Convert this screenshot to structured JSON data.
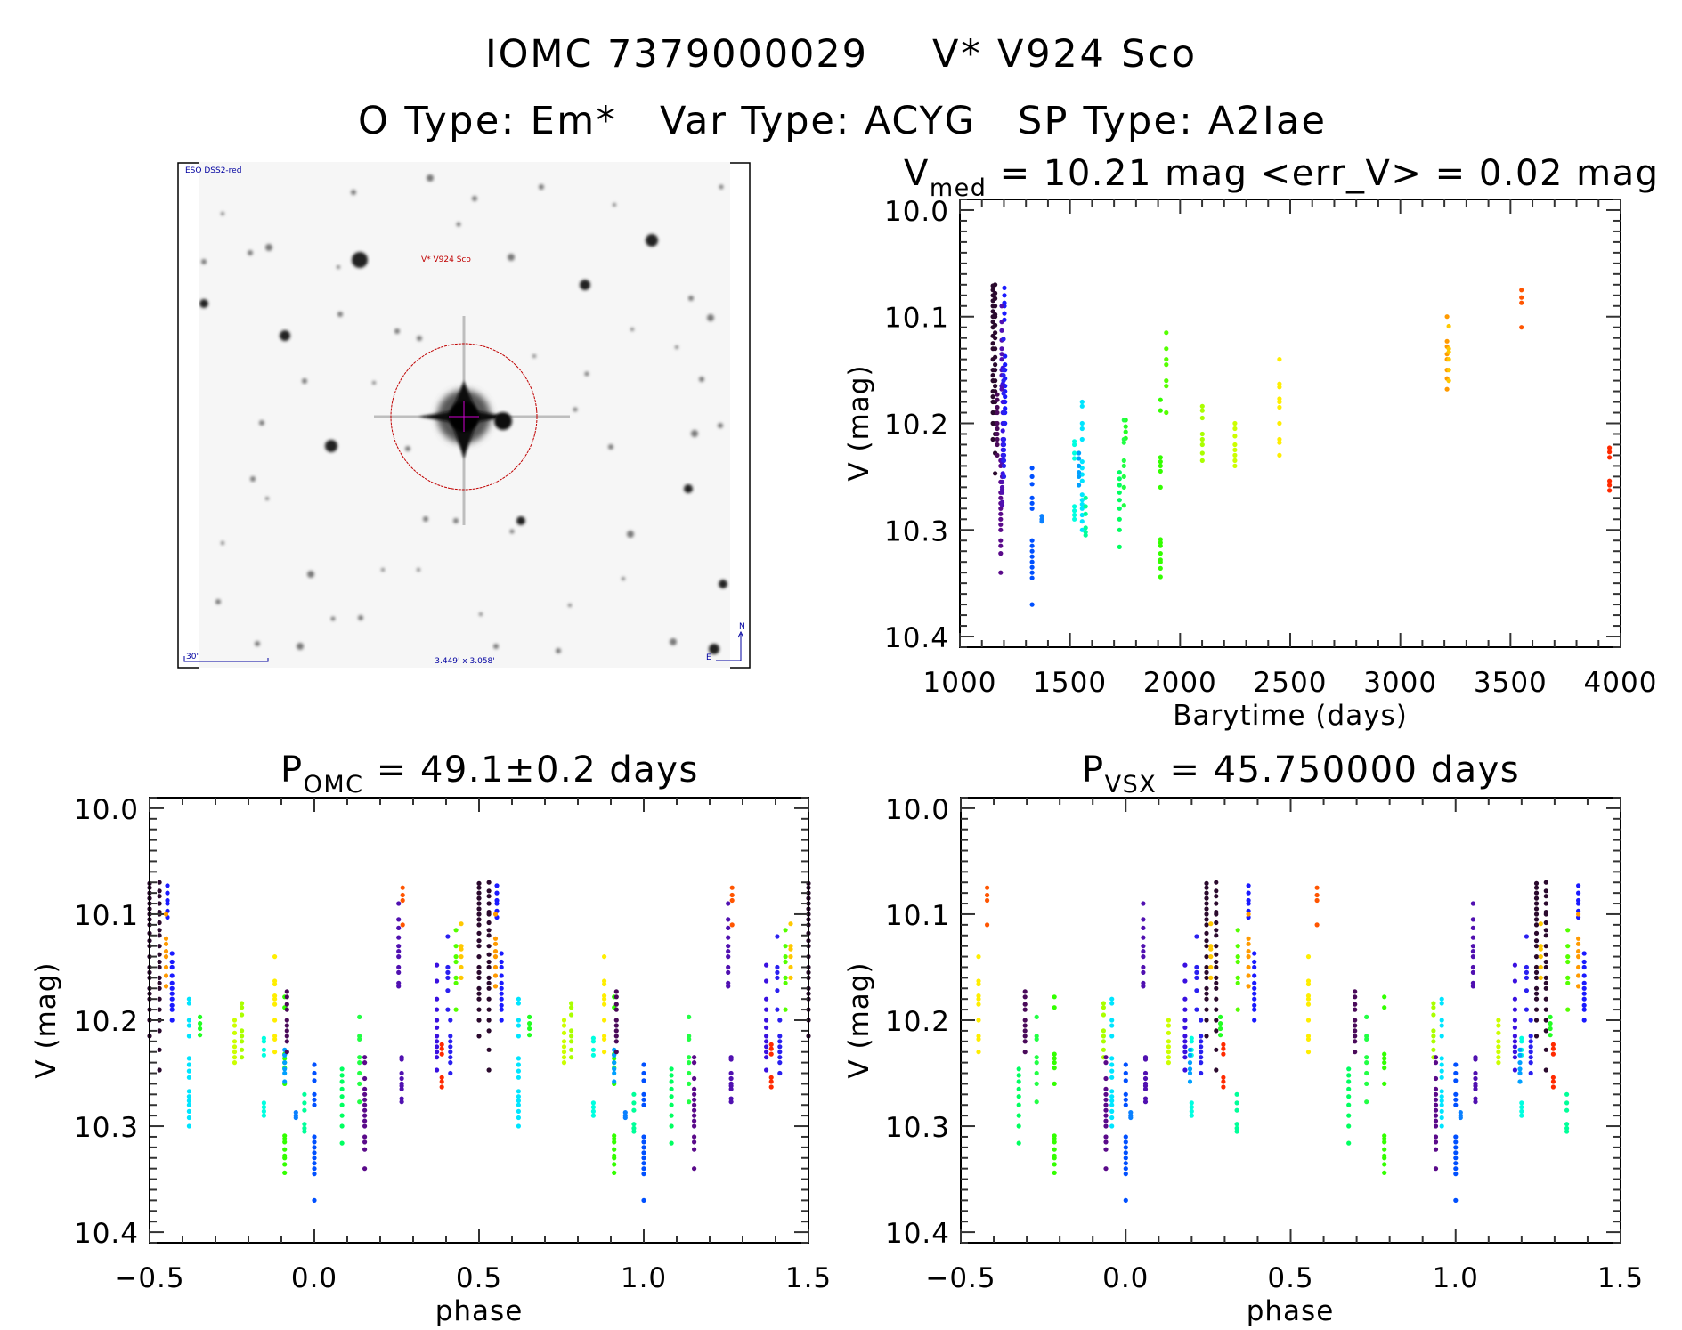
{
  "header": {
    "iomc_id": "IOMC 7379000029",
    "object_name": "V* V924 Sco",
    "object_type": "O Type: Em*",
    "var_type": "Var Type: ACYG",
    "sp_type": "SP Type: A2Iae"
  },
  "image": {
    "survey_label": "ESO DSS2-red",
    "target_label": "V* V924 Sco",
    "scale_label": "30\"",
    "fov_label": "3.449' x 3.058'",
    "compass_north": "N",
    "compass_east": "E",
    "circle_color": "#c00000",
    "label_color": "#0000a0"
  },
  "chart_data": [
    {
      "type": "scatter",
      "title": {
        "prefix": "V",
        "sub": "med",
        "suffix": " = 10.21 mag <err_V> = 0.02 mag"
      },
      "xlabel": "Barytime (days)",
      "ylabel": "V (mag)",
      "xlim": [
        1000,
        4000
      ],
      "ylim": [
        9.99,
        10.41
      ],
      "y_reversed": true,
      "xticks": [
        1000,
        1500,
        2000,
        2500,
        3000,
        3500,
        4000
      ],
      "xtick_labels": [
        "1000",
        "1500",
        "2000",
        "2500",
        "3000",
        "3500",
        "4000"
      ],
      "yticks": [
        10.0,
        10.1,
        10.2,
        10.3,
        10.4
      ],
      "ytick_labels": [
        "10.0",
        "10.1",
        "10.2",
        "10.3",
        "10.4"
      ],
      "grid": false,
      "series": [
        {
          "color": "#2b0a2e",
          "time": 1150,
          "phase_omc": 0.5,
          "phase_vsx": 0.245,
          "mags": [
            10.071,
            10.075,
            10.08,
            10.085,
            10.09,
            10.095,
            10.1,
            10.105,
            10.11,
            10.118,
            10.125,
            10.13,
            10.14,
            10.15,
            10.155,
            10.16,
            10.17,
            10.175,
            10.18,
            10.19,
            10.2,
            10.215
          ]
        },
        {
          "color": "#2b0a2e",
          "time": 1160,
          "phase_omc": 0.53,
          "phase_vsx": 0.274,
          "mags": [
            10.07,
            10.078,
            10.083,
            10.09,
            10.098,
            10.1,
            10.108,
            10.115,
            10.12,
            10.13,
            10.138,
            10.145,
            10.15,
            10.16,
            10.165,
            10.17,
            10.18,
            10.19,
            10.2,
            10.21,
            10.228,
            10.247
          ]
        },
        {
          "color": "#1a1aff",
          "time": 1202,
          "phase_omc": 0.554,
          "phase_vsx": 0.372,
          "mags": [
            10.073,
            10.08,
            10.087,
            10.09,
            10.097,
            10.103
          ]
        },
        {
          "color": "#1a1aff",
          "time": 1205,
          "phase_omc": 0.568,
          "phase_vsx": 0.39,
          "mags": [
            10.137,
            10.145,
            10.15,
            10.158,
            10.165,
            10.17,
            10.175,
            10.18,
            10.186,
            10.19,
            10.2
          ]
        },
        {
          "color": "#ff9a00",
          "time": 3212,
          "phase_omc": 0.55,
          "phase_vsx": 0.372,
          "mags": [
            10.1,
            10.123,
            10.128,
            10.135,
            10.14,
            10.15,
            10.158,
            10.168
          ]
        },
        {
          "color": "#00e5ff",
          "time": 1555,
          "phase_omc": 0.62,
          "phase_vsx": 0.958,
          "mags": [
            10.18,
            10.184,
            10.2,
            10.205,
            10.215,
            10.236,
            10.242,
            10.248,
            10.254,
            10.267,
            10.272,
            10.276,
            10.28,
            10.286,
            10.292,
            10.3
          ]
        },
        {
          "color": "#22ff22",
          "time": 1753,
          "phase_omc": 0.653,
          "phase_vsx": 0.287,
          "mags": [
            10.197,
            10.203,
            10.208,
            10.214
          ]
        },
        {
          "color": "#aaff00",
          "time": 2101,
          "phase_omc": 0.78,
          "phase_vsx": 0.933,
          "mags": [
            10.184,
            10.188,
            10.195,
            10.21,
            10.215,
            10.22,
            10.228,
            10.235
          ]
        },
        {
          "color": "#ccff00",
          "time": 2249,
          "phase_omc": 0.758,
          "phase_vsx": 0.13,
          "mags": [
            10.2,
            10.205,
            10.212,
            10.22,
            10.225,
            10.23,
            10.235,
            10.24
          ]
        },
        {
          "color": "#00ffe0",
          "time": 1520,
          "phase_omc": 0.847,
          "phase_vsx": 0.2,
          "mags": [
            10.217,
            10.22,
            10.228,
            10.233,
            10.278,
            10.282,
            10.286,
            10.29
          ]
        },
        {
          "color": "#ffee00",
          "time": 2451,
          "phase_omc": 0.88,
          "phase_vsx": 0.554,
          "mags": [
            10.14,
            10.163,
            10.166,
            10.177,
            10.18,
            10.185,
            10.2,
            10.215,
            10.218,
            10.23
          ]
        },
        {
          "color": "#33ff00",
          "time": 1911,
          "phase_omc": 0.91,
          "phase_vsx": 0.784,
          "mags": [
            10.178,
            10.188,
            10.232,
            10.236,
            10.24,
            10.245,
            10.26,
            10.309,
            10.312,
            10.315,
            10.322,
            10.328,
            10.33,
            10.336,
            10.344
          ]
        },
        {
          "color": "#00a0ff",
          "time": 1540,
          "phase_omc": 0.91,
          "phase_vsx": 0.195,
          "mags": [
            10.228,
            10.233,
            10.24,
            10.246,
            10.25,
            10.258
          ]
        },
        {
          "color": "#4a0a5a",
          "time": 1170,
          "phase_omc": 0.917,
          "phase_vsx": 0.695,
          "mags": [
            10.173,
            10.178,
            10.185,
            10.19,
            10.2,
            10.205,
            10.21,
            10.215,
            10.22,
            10.23
          ]
        },
        {
          "color": "#0a80ff",
          "time": 1372,
          "phase_omc": 0.944,
          "phase_vsx": 0.015,
          "mags": [
            10.287,
            10.29,
            10.292
          ]
        },
        {
          "color": "#00ff99",
          "time": 1571,
          "phase_omc": 0.97,
          "phase_vsx": 0.337,
          "mags": [
            10.27,
            10.278,
            10.285,
            10.298,
            10.302,
            10.305
          ]
        },
        {
          "color": "#0050ff",
          "time": 1328,
          "phase_omc": 0.0,
          "phase_vsx": 0.0,
          "mags": [
            10.242,
            10.25,
            10.257,
            10.27,
            10.275,
            10.28,
            10.31,
            10.315,
            10.32,
            10.325,
            10.33,
            10.335,
            10.34,
            10.345,
            10.37
          ]
        },
        {
          "color": "#00ff60",
          "time": 1725,
          "phase_omc": 0.084,
          "phase_vsx": 0.676,
          "mags": [
            10.246,
            10.252,
            10.258,
            10.265,
            10.272,
            10.28,
            10.29,
            10.3,
            10.316
          ]
        },
        {
          "color": "#22ff44",
          "time": 1745,
          "phase_omc": 0.137,
          "phase_vsx": 0.73,
          "mags": [
            10.197,
            10.215,
            10.218,
            10.235,
            10.24,
            10.25,
            10.26,
            10.277
          ]
        },
        {
          "color": "#5a0a8a",
          "time": 1185,
          "phase_omc": 0.153,
          "phase_vsx": 0.94,
          "mags": [
            10.235,
            10.24,
            10.255,
            10.265,
            10.27,
            10.275,
            10.28,
            10.285,
            10.29,
            10.295,
            10.3,
            10.31,
            10.315,
            10.322,
            10.34
          ]
        },
        {
          "color": "#5010b0",
          "time": 1190,
          "phase_omc": 0.256,
          "phase_vsx": 0.053,
          "mags": [
            10.09,
            10.105,
            10.113,
            10.122,
            10.13,
            10.135,
            10.14,
            10.15,
            10.155,
            10.165,
            10.168
          ]
        },
        {
          "color": "#5010b0",
          "time": 1192,
          "phase_omc": 0.265,
          "phase_vsx": 0.06,
          "mags": [
            10.235,
            10.237,
            10.25,
            10.255,
            10.26,
            10.262,
            10.265,
            10.274,
            10.277
          ]
        },
        {
          "color": "#ff5500",
          "time": 3550,
          "phase_omc": 0.268,
          "phase_vsx": 0.58,
          "mags": [
            10.075,
            10.082,
            10.087,
            10.11
          ]
        },
        {
          "color": "#3a10e0",
          "time": 1195,
          "phase_omc": 0.372,
          "phase_vsx": 0.18,
          "mags": [
            10.148,
            10.163,
            10.18,
            10.19,
            10.2,
            10.207,
            10.215,
            10.22,
            10.225,
            10.23,
            10.235,
            10.247
          ]
        },
        {
          "color": "#2a20f0",
          "time": 1198,
          "phase_omc": 0.405,
          "phase_vsx": 0.215,
          "mags": [
            10.121,
            10.15,
            10.155,
            10.16,
            10.172,
            10.19
          ]
        },
        {
          "color": "#2a20f0",
          "time": 1200,
          "phase_omc": 0.413,
          "phase_vsx": 0.228,
          "mags": [
            10.2,
            10.215,
            10.22,
            10.225,
            10.23,
            10.235,
            10.24,
            10.25
          ]
        },
        {
          "color": "#ff2a00",
          "time": 3950,
          "phase_omc": 0.387,
          "phase_vsx": 0.296,
          "mags": [
            10.223,
            10.227,
            10.232,
            10.254,
            10.258,
            10.263
          ]
        },
        {
          "color": "#55ff00",
          "time": 1937,
          "phase_omc": 0.43,
          "phase_vsx": 0.34,
          "mags": [
            10.115,
            10.13,
            10.14,
            10.145,
            10.16,
            10.165,
            10.19
          ]
        },
        {
          "color": "#ffc800",
          "time": 3220,
          "phase_omc": 0.446,
          "phase_vsx": 0.258,
          "mags": [
            10.109,
            10.13,
            10.133,
            10.14,
            10.15,
            10.16
          ]
        }
      ]
    },
    {
      "type": "scatter",
      "title": {
        "prefix": "P",
        "sub": "OMC",
        "suffix": " = 49.1±0.2 days"
      },
      "xlabel": "phase",
      "ylabel": "V (mag)",
      "x_field": "phase_omc",
      "series_source": "chart_data.0.series",
      "xlim": [
        -0.5,
        1.5
      ],
      "ylim": [
        9.99,
        10.41
      ],
      "y_reversed": true,
      "xticks": [
        -0.5,
        0.0,
        0.5,
        1.0,
        1.5
      ],
      "xtick_labels": [
        "−0.5",
        "0.0",
        "0.5",
        "1.0",
        "1.5"
      ],
      "yticks": [
        10.0,
        10.1,
        10.2,
        10.3,
        10.4
      ],
      "ytick_labels": [
        "10.0",
        "10.1",
        "10.2",
        "10.3",
        "10.4"
      ],
      "grid": false
    },
    {
      "type": "scatter",
      "title": {
        "prefix": "P",
        "sub": "VSX",
        "suffix": " = 45.750000 days"
      },
      "xlabel": "phase",
      "ylabel": "V (mag)",
      "x_field": "phase_vsx",
      "series_source": "chart_data.0.series",
      "xlim": [
        -0.5,
        1.5
      ],
      "ylim": [
        9.99,
        10.41
      ],
      "y_reversed": true,
      "xticks": [
        -0.5,
        0.0,
        0.5,
        1.0,
        1.5
      ],
      "xtick_labels": [
        "−0.5",
        "0.0",
        "0.5",
        "1.0",
        "1.5"
      ],
      "yticks": [
        10.0,
        10.1,
        10.2,
        10.3,
        10.4
      ],
      "ytick_labels": [
        "10.0",
        "10.1",
        "10.2",
        "10.3",
        "10.4"
      ],
      "grid": false
    }
  ]
}
